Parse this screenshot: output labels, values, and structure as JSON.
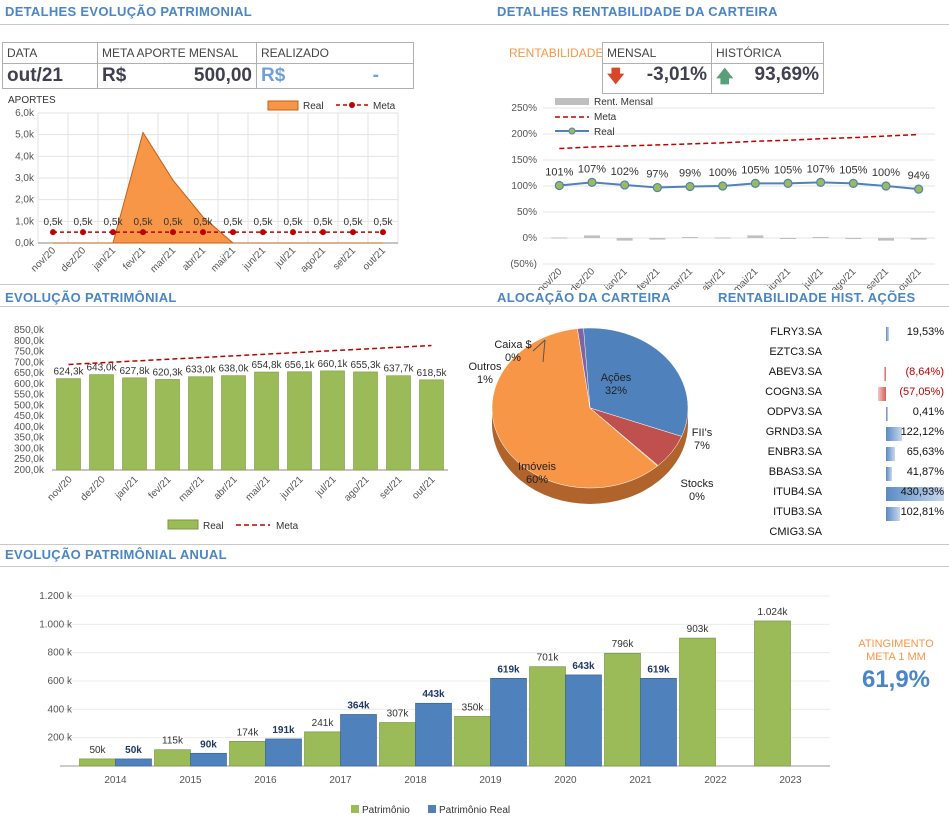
{
  "titles": {
    "evol_patrimonial": "DETALHES EVOLUÇÃO PATRIMONIAL",
    "rentab_carteira": "DETALHES RENTABILIDADE DA CARTEIRA",
    "evolucao": "EVOLUÇÃO PATRIMÔNIAL",
    "alocacao": "ALOCAÇÃO DA CARTEIRA",
    "rentab_acoes": "RENTABILIDADE HIST. AÇÕES",
    "anual": "EVOLUÇÃO PATRIMÔNIAL ANUAL"
  },
  "kpi_left": {
    "h_data": "DATA",
    "h_meta": "META APORTE MENSAL",
    "h_real": "REALIZADO",
    "data": "out/21",
    "meta_cur": "R$",
    "meta_val": "500,00",
    "real_cur": "R$",
    "real_val": "-"
  },
  "kpi_right": {
    "label": "RENTABILIDADE",
    "h_mensal": "MENSAL",
    "h_hist": "HISTÓRICA",
    "mensal": "-3,01%",
    "hist": "93,69%",
    "colors": {
      "down": "#d9472b",
      "up": "#5a9e7a"
    }
  },
  "colors": {
    "title": "#4a86c5",
    "orange": "#f79646",
    "green": "#9bbb59",
    "blue": "#4f81bd",
    "red": "#c00000",
    "meta_big": "#4a86c5",
    "neg": "#c00000"
  },
  "aportes_chart": {
    "type": "area",
    "title": "APORTES",
    "legend": [
      "Real",
      "Meta"
    ],
    "categories": [
      "nov/20",
      "dez/20",
      "jan/21",
      "fev/21",
      "mar/21",
      "abr/21",
      "mai/21",
      "jun/21",
      "jul/21",
      "ago/21",
      "set/21",
      "out/21"
    ],
    "yticks": [
      "0,0k",
      "1,0k",
      "2,0k",
      "3,0k",
      "4,0k",
      "5,0k",
      "6,0k"
    ],
    "ylim": [
      0,
      6000
    ],
    "real": [
      0,
      0,
      0,
      5100,
      2900,
      1200,
      0,
      0,
      0,
      0,
      0,
      0
    ],
    "meta": [
      500,
      500,
      500,
      500,
      500,
      500,
      500,
      500,
      500,
      500,
      500,
      500
    ],
    "meta_labels": [
      "0,5k",
      "0,5k",
      "0,5k",
      "0,5k",
      "0,5k",
      "0,5k",
      "0,5k",
      "0,5k",
      "0,5k",
      "0,5k",
      "0,5k",
      "0,5k"
    ]
  },
  "rentab_chart": {
    "type": "line",
    "legend": [
      "Rent. Mensal",
      "Meta",
      "Real"
    ],
    "categories": [
      "nov/20",
      "dez/20",
      "jan/21",
      "fev/21",
      "mar/21",
      "abr/21",
      "mai/21",
      "jun/21",
      "jul/21",
      "ago/21",
      "set/21",
      "out/21"
    ],
    "yticks": [
      "(50%)",
      "0%",
      "50%",
      "100%",
      "150%",
      "200%",
      "250%"
    ],
    "ylim": [
      -50,
      250
    ],
    "real": [
      101,
      107,
      102,
      97,
      99,
      100,
      105,
      105,
      107,
      105,
      100,
      94
    ],
    "real_labels": [
      "101%",
      "107%",
      "102%",
      "97%",
      "99%",
      "100%",
      "105%",
      "105%",
      "107%",
      "105%",
      "100%",
      "94%"
    ],
    "meta": [
      172,
      175,
      177,
      179,
      181,
      183,
      186,
      188,
      191,
      193,
      196,
      199
    ],
    "mensal": [
      1,
      5,
      -5,
      -3,
      2,
      1,
      5,
      0,
      2,
      -2,
      -5,
      -3
    ]
  },
  "evol_chart": {
    "type": "bar",
    "legend": [
      "Real",
      "Meta"
    ],
    "categories": [
      "nov/20",
      "dez/20",
      "jan/21",
      "fev/21",
      "mar/21",
      "abr/21",
      "mai/21",
      "jun/21",
      "jul/21",
      "ago/21",
      "set/21",
      "out/21"
    ],
    "yticks": [
      "200,0k",
      "250,0k",
      "300,0k",
      "350,0k",
      "400,0k",
      "450,0k",
      "500,0k",
      "550,0k",
      "600,0k",
      "650,0k",
      "700,0k",
      "750,0k",
      "800,0k",
      "850,0k"
    ],
    "ylim": [
      200,
      850
    ],
    "values": [
      624.3,
      643.0,
      627.8,
      620.3,
      633.0,
      638.0,
      654.8,
      656.1,
      660.1,
      655.3,
      637.7,
      618.5
    ],
    "labels": [
      "624,3k",
      "643,0k",
      "627,8k",
      "620,3k",
      "633,0k",
      "638,0k",
      "654,8k",
      "656,1k",
      "660,1k",
      "655,3k",
      "637,7k",
      "618,5k"
    ],
    "meta": [
      690,
      698,
      706,
      714,
      722,
      730,
      738,
      746,
      754,
      762,
      770,
      778
    ]
  },
  "pie": {
    "type": "pie",
    "slices": [
      {
        "name": "Ações",
        "pct": 32,
        "label": "Ações\n32%",
        "color": "#4f81bd"
      },
      {
        "name": "FII's",
        "pct": 7,
        "label": "FII's\n7%",
        "color": "#c0504d"
      },
      {
        "name": "Stocks",
        "pct": 0,
        "label": "Stocks\n0%",
        "color": "#9bbb59"
      },
      {
        "name": "Imóveis",
        "pct": 60,
        "label": "Imóveis\n60%",
        "color": "#f79646"
      },
      {
        "name": "Outros",
        "pct": 1,
        "label": "Outros\n1%",
        "color": "#8064a2"
      },
      {
        "name": "Caixa $",
        "pct": 0,
        "label": "Caixa $\n0%",
        "color": "#4bacc6"
      }
    ],
    "label_text": {
      "acoes": "Ações",
      "acoes_pct": "32%",
      "fii": "FII's",
      "fii_pct": "7%",
      "stocks": "Stocks",
      "stocks_pct": "0%",
      "imoveis": "Imóveis",
      "imoveis_pct": "60%",
      "outros": "Outros",
      "outros_pct": "1%",
      "caixa": "Caixa $",
      "caixa_pct": "0%"
    }
  },
  "acoes": [
    {
      "ticker": "FLRY3.SA",
      "value": "19,53%",
      "num": 19.53
    },
    {
      "ticker": "EZTC3.SA",
      "value": "",
      "num": 0
    },
    {
      "ticker": "ABEV3.SA",
      "value": "(8,64%)",
      "num": -8.64
    },
    {
      "ticker": "COGN3.SA",
      "value": "(57,05%)",
      "num": -57.05
    },
    {
      "ticker": "ODPV3.SA",
      "value": "0,41%",
      "num": 0.41
    },
    {
      "ticker": "GRND3.SA",
      "value": "122,12%",
      "num": 122.12
    },
    {
      "ticker": "ENBR3.SA",
      "value": "65,63%",
      "num": 65.63
    },
    {
      "ticker": "BBAS3.SA",
      "value": "41,87%",
      "num": 41.87
    },
    {
      "ticker": "ITUB4.SA",
      "value": "430,93%",
      "num": 430.93
    },
    {
      "ticker": "ITUB3.SA",
      "value": "102,81%",
      "num": 102.81
    },
    {
      "ticker": "CMIG3.SA",
      "value": "",
      "num": 0
    }
  ],
  "anual_chart": {
    "type": "bar",
    "legend": [
      "Patrimônio",
      "Patrimônio Real"
    ],
    "categories": [
      "2014",
      "2015",
      "2016",
      "2017",
      "2018",
      "2019",
      "2020",
      "2021",
      "2022",
      "2023"
    ],
    "yticks": [
      "200 k",
      "400 k",
      "600 k",
      "800 k",
      "1.000 k",
      "1.200 k"
    ],
    "ylim": [
      0,
      1200
    ],
    "patrimonio": [
      50,
      115,
      174,
      241,
      307,
      350,
      701,
      796,
      903,
      1024
    ],
    "patrimonio_labels": [
      "50k",
      "115k",
      "174k",
      "241k",
      "307k",
      "350k",
      "701k",
      "796k",
      "903k",
      "1.024k"
    ],
    "real": [
      50,
      90,
      191,
      364,
      443,
      619,
      643,
      619,
      null,
      null
    ],
    "real_labels": [
      "50k",
      "90k",
      "191k",
      "364k",
      "443k",
      "619k",
      "643k",
      "619k",
      "",
      ""
    ]
  },
  "meta_1mm": {
    "label1": "ATINGIMENTO",
    "label2": "META 1 MM",
    "value": "61,9%"
  }
}
